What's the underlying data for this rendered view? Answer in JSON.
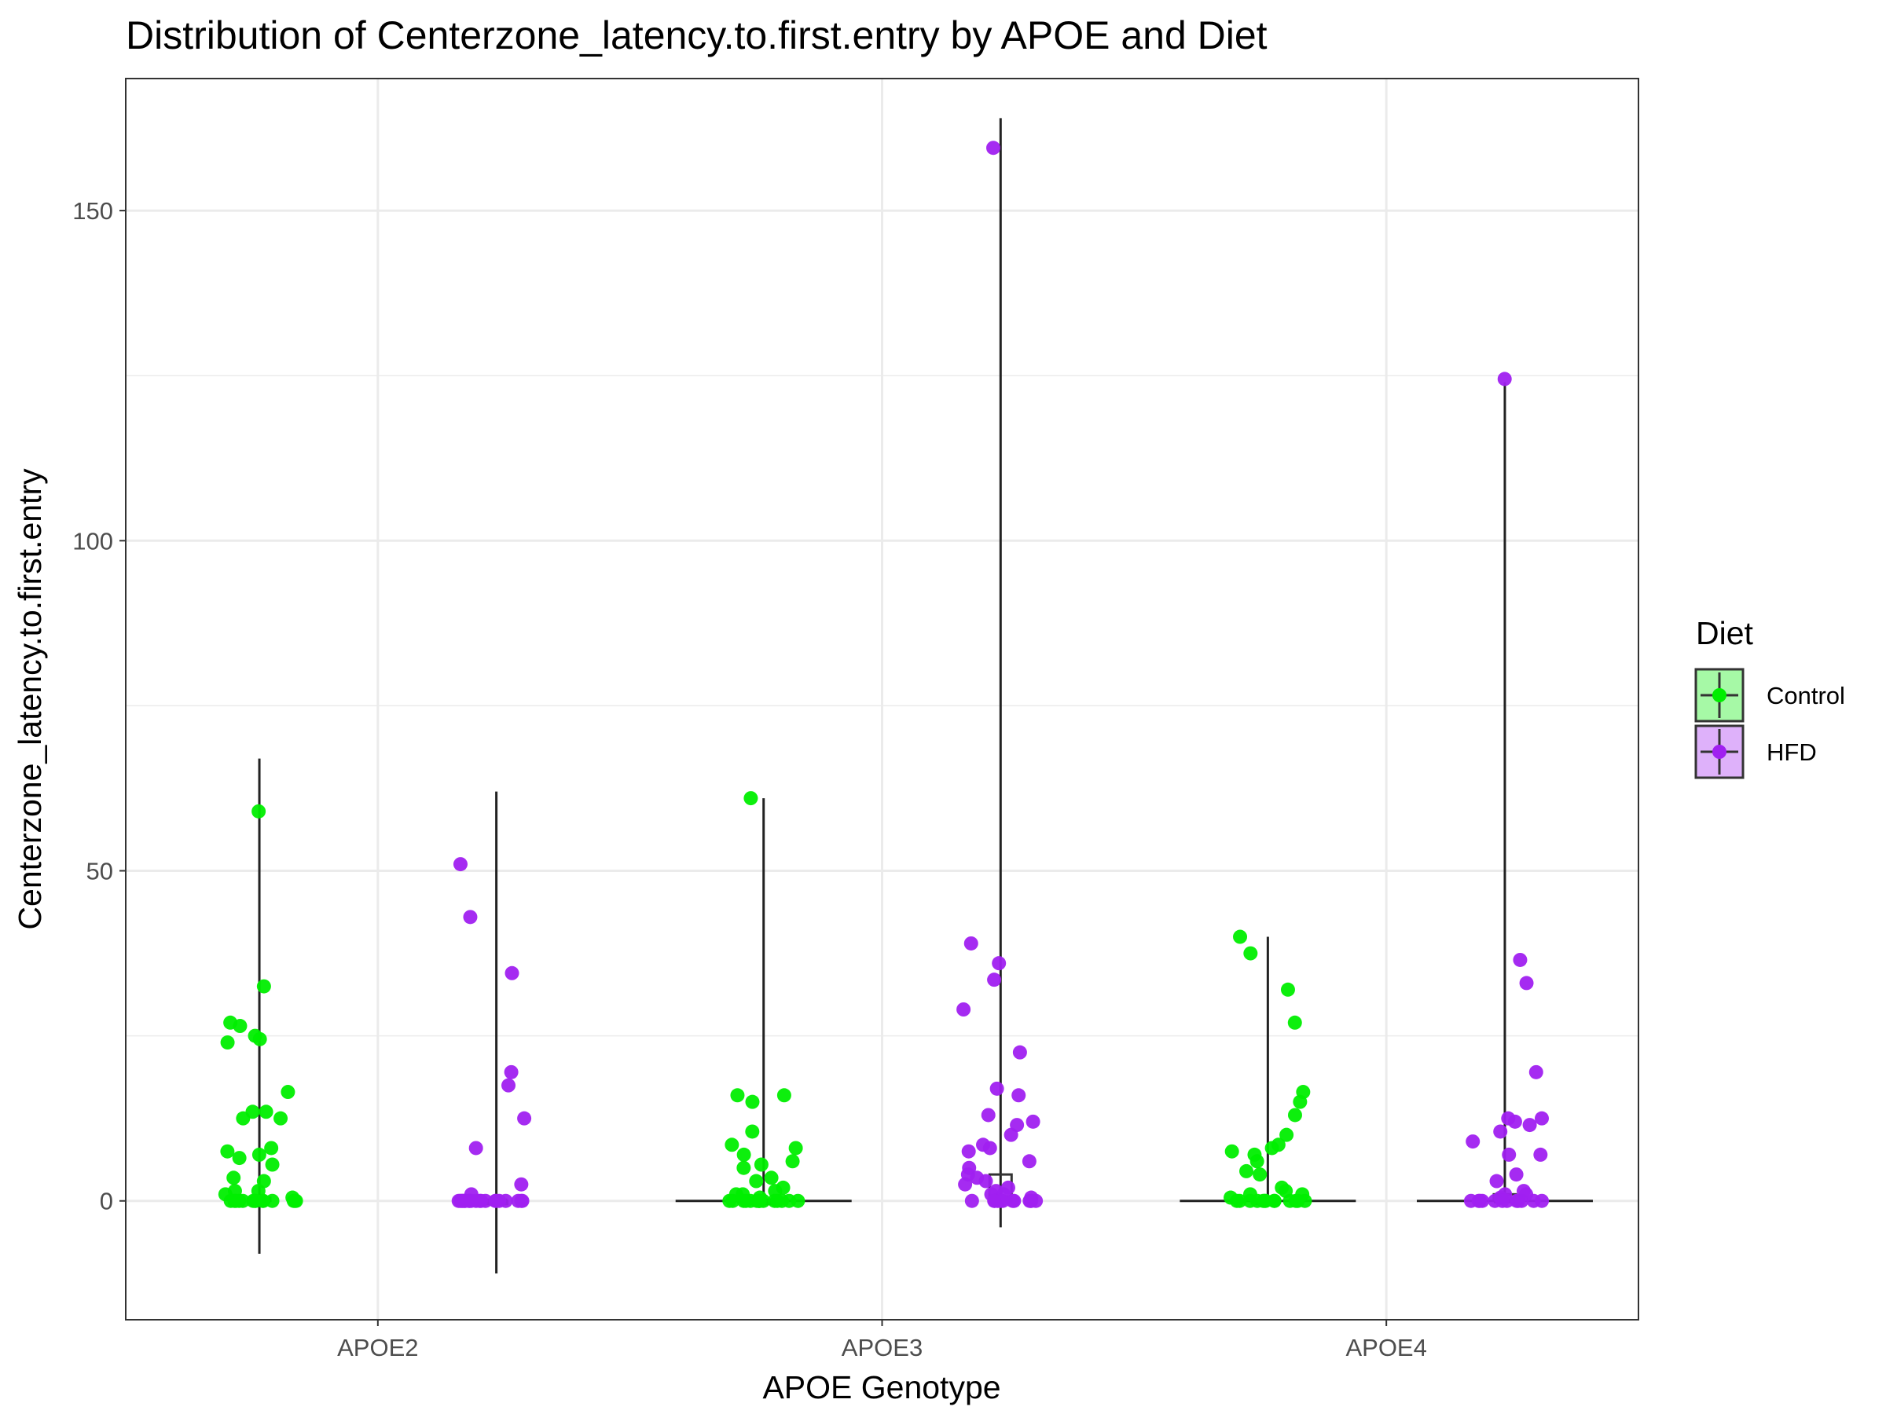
{
  "chart_data": {
    "type": "violin",
    "title": "Distribution of Centerzone_latency.to.first.entry by APOE and Diet",
    "xlabel": "APOE Genotype",
    "ylabel": "Centerzone_latency.to.first.entry",
    "categories": [
      "APOE2",
      "APOE3",
      "APOE4"
    ],
    "ylim": [
      -18,
      170
    ],
    "yticks": [
      0,
      50,
      100,
      150
    ],
    "grid": true,
    "legend": {
      "title": "Diet",
      "position": "right",
      "entries": [
        "Control",
        "HFD"
      ]
    },
    "colors": {
      "Control": "#00ee00",
      "HFD": "#a020f0",
      "panel_border": "#333333",
      "grid": "#ebebeb"
    },
    "series": [
      {
        "name": "Control",
        "groups": [
          {
            "category": "APOE2",
            "range": [
              -8,
              67
            ],
            "box": {
              "q1": 0,
              "median": 0,
              "q3": 0.5
            },
            "points": [
              59,
              32.5,
              27,
              26.5,
              25,
              24.5,
              24,
              16.5,
              13.5,
              13.5,
              12.5,
              12.5,
              8,
              7.5,
              7,
              6.5,
              5.5,
              3.5,
              3,
              1.5,
              1.5,
              1,
              0.5,
              0,
              0,
              0,
              0,
              0,
              0,
              0,
              0,
              0,
              0,
              0,
              0,
              0,
              0
            ]
          },
          {
            "category": "APOE3",
            "range": [
              0,
              61
            ],
            "box": {
              "q1": 0,
              "median": 0,
              "q3": 0
            },
            "points": [
              61,
              16,
              16,
              15,
              10.5,
              8.5,
              8,
              7,
              6,
              5.5,
              5,
              3.5,
              3,
              2,
              1.5,
              1,
              1,
              0.5,
              0,
              0,
              0,
              0,
              0,
              0,
              0,
              0,
              0,
              0,
              0,
              0,
              0,
              0,
              0,
              0
            ]
          },
          {
            "category": "APOE4",
            "range": [
              0,
              40
            ],
            "box": {
              "q1": 0,
              "median": 0,
              "q3": 0
            },
            "points": [
              40,
              37.5,
              32,
              27,
              16.5,
              15,
              13,
              10,
              8.5,
              8,
              7.5,
              7,
              6,
              4.5,
              4,
              2,
              1.5,
              1,
              1,
              0.5,
              0,
              0,
              0,
              0,
              0,
              0,
              0,
              0,
              0,
              0,
              0,
              0,
              0
            ]
          }
        ]
      },
      {
        "name": "HFD",
        "groups": [
          {
            "category": "APOE2",
            "range": [
              -11,
              62
            ],
            "box": {
              "q1": 0,
              "median": 0,
              "q3": 0
            },
            "points": [
              51,
              43,
              34.5,
              19.5,
              17.5,
              12.5,
              8,
              2.5,
              1,
              0,
              0,
              0,
              0,
              0,
              0,
              0,
              0,
              0,
              0,
              0,
              0,
              0,
              0,
              0,
              0,
              0,
              0,
              0,
              0,
              0
            ]
          },
          {
            "category": "APOE3",
            "range": [
              -4,
              164
            ],
            "box": {
              "q1": 0,
              "median": 0.5,
              "q3": 4
            },
            "points": [
              159.5,
              39,
              36,
              33.5,
              29,
              22.5,
              17,
              16,
              13,
              12,
              11.5,
              10,
              8.5,
              8,
              7.5,
              6,
              5,
              4,
              3.5,
              3,
              2.5,
              2,
              1.5,
              1,
              1,
              0.5,
              0,
              0,
              0,
              0,
              0,
              0,
              0,
              0,
              0,
              0,
              0,
              0
            ]
          },
          {
            "category": "APOE4",
            "range": [
              0,
              124
            ],
            "box": {
              "q1": 0,
              "median": 0,
              "q3": 1
            },
            "points": [
              124.5,
              36.5,
              33,
              19.5,
              12.5,
              12.5,
              12,
              11.5,
              10.5,
              9,
              7,
              7,
              4,
              3,
              1.5,
              1,
              1,
              0.5,
              0,
              0,
              0,
              0,
              0,
              0,
              0,
              0,
              0,
              0,
              0,
              0
            ]
          }
        ]
      }
    ]
  }
}
